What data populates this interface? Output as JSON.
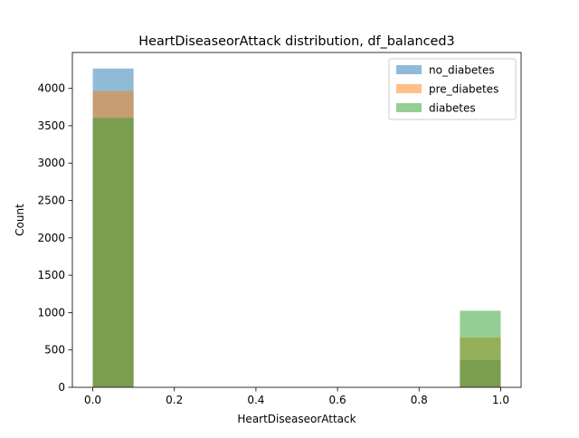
{
  "chart_data": {
    "type": "bar",
    "title": "HeartDiseaseorAttack distribution, df_balanced3",
    "xlabel": "HeartDiseaseorAttack",
    "ylabel": "Count",
    "xlim": [
      -0.05,
      1.05
    ],
    "ylim": [
      0,
      4480
    ],
    "x_ticks": [
      0.0,
      0.2,
      0.4,
      0.6,
      0.8,
      1.0
    ],
    "x_tick_labels": [
      "0.0",
      "0.2",
      "0.4",
      "0.6",
      "0.8",
      "1.0"
    ],
    "y_ticks": [
      0,
      500,
      1000,
      1500,
      2000,
      2500,
      3000,
      3500,
      4000
    ],
    "y_tick_labels": [
      "0",
      "500",
      "1000",
      "1500",
      "2000",
      "2500",
      "3000",
      "3500",
      "4000"
    ],
    "bins": [
      [
        0.0,
        0.1
      ],
      [
        0.9,
        1.0
      ]
    ],
    "alpha": 0.5,
    "grid": false,
    "legend_position": "top-right",
    "series": [
      {
        "name": "no_diabetes",
        "color": "#1f77b4",
        "values": [
          4265,
          365
        ]
      },
      {
        "name": "pre_diabetes",
        "color": "#ff7f0e",
        "values": [
          3965,
          665
        ]
      },
      {
        "name": "diabetes",
        "color": "#2ca02c",
        "values": [
          3605,
          1025
        ]
      }
    ]
  }
}
